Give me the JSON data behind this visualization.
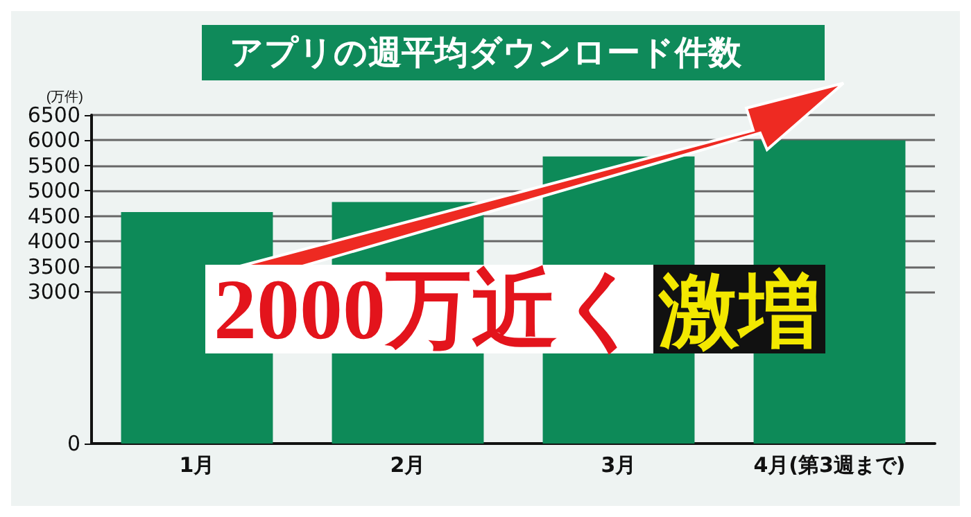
{
  "chart_data": {
    "type": "bar",
    "title": "アプリの週平均ダウンロード件数",
    "ylabel": "(万件)",
    "categories": [
      "1月",
      "2月",
      "3月",
      "4月(第3週まで)"
    ],
    "series": [
      {
        "color": "#0d8a58",
        "values": [
          4580,
          4780,
          5680,
          6000
        ]
      }
    ],
    "ylim": [
      0,
      6500
    ],
    "yticks": [
      0,
      3000,
      3500,
      4000,
      4500,
      5000,
      5500,
      6000,
      6500
    ],
    "grid": "y",
    "annotations": [
      "2000万近く激増"
    ]
  }
}
